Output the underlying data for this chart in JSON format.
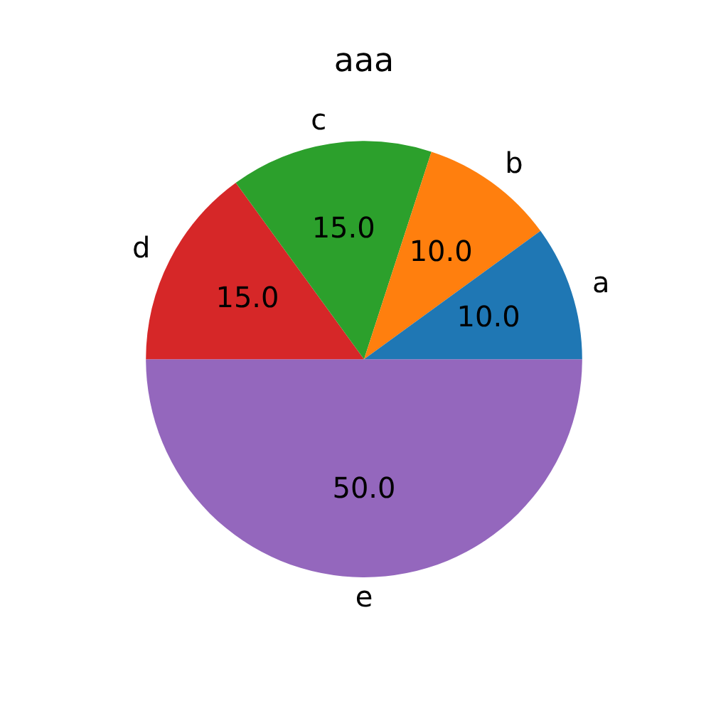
{
  "chart_data": {
    "type": "pie",
    "title": "aaa",
    "categories": [
      "a",
      "b",
      "c",
      "d",
      "e"
    ],
    "values": [
      10,
      10,
      15,
      15,
      50
    ],
    "value_labels": [
      "10.0",
      "10.0",
      "15.0",
      "15.0",
      "50.0"
    ],
    "colors": [
      "#1f77b4",
      "#ff7f0e",
      "#2ca02c",
      "#d62728",
      "#9467bd"
    ],
    "legend": false
  }
}
